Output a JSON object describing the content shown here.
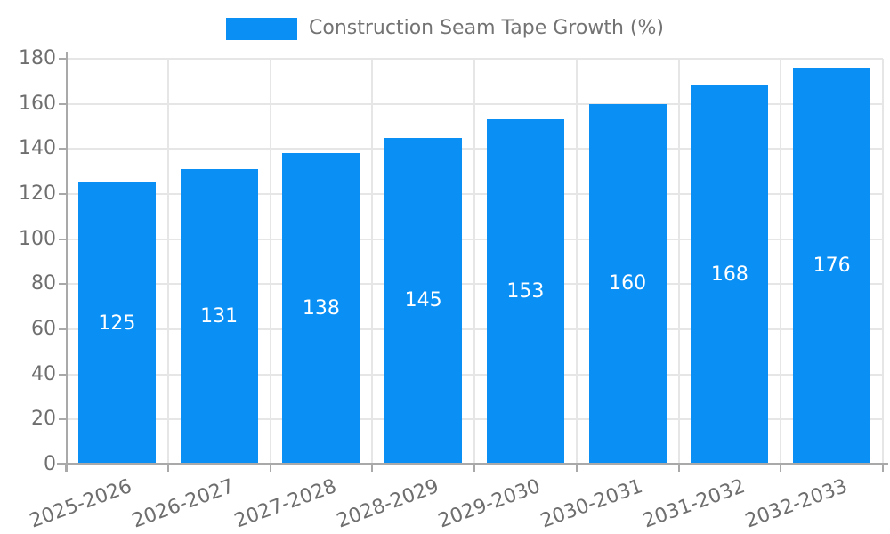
{
  "legend": {
    "label": "Construction Seam Tape Growth (%)"
  },
  "chart_data": {
    "type": "bar",
    "title": "",
    "xlabel": "",
    "ylabel": "",
    "categories": [
      "2025-2026",
      "2026-2027",
      "2027-2028",
      "2028-2029",
      "2029-2030",
      "2030-2031",
      "2031-2032",
      "2032-2033"
    ],
    "series": [
      {
        "name": "Construction Seam Tape Growth (%)",
        "values": [
          125,
          131,
          138,
          145,
          153,
          160,
          168,
          176
        ]
      }
    ],
    "value_labels_shown": true,
    "ylim": [
      0,
      180
    ],
    "yticks": [
      0,
      20,
      40,
      60,
      80,
      100,
      120,
      140,
      160,
      180
    ],
    "grid": "horizontal-and-vertical",
    "legend_position": "top-center",
    "x_label_rotation_deg": 20
  },
  "colors": {
    "bar": "#0a90f5",
    "axis_line": "#a9a9a9",
    "grid_line": "#e6e6e6",
    "tick_text": "#6e6e6e",
    "legend_text": "#737373",
    "value_label_text": "#ffffff",
    "background": "#ffffff"
  }
}
